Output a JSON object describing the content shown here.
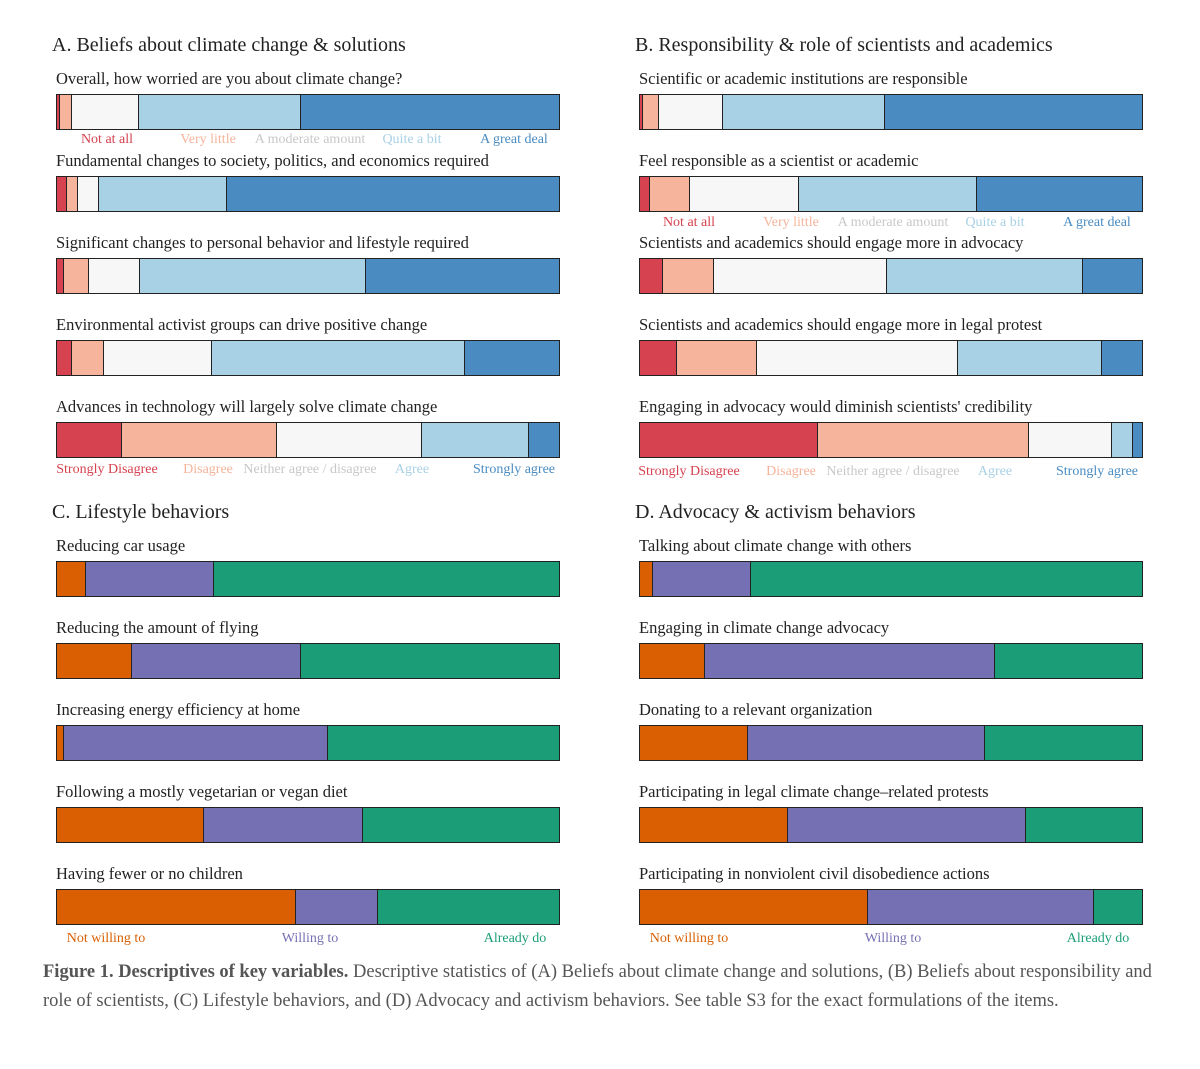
{
  "colors": {
    "sd": "#d6424f",
    "d": "#f5b49b",
    "n": "#f7f7f7",
    "a": "#a8d1e5",
    "sa": "#4a8cc2",
    "not": "#d95f02",
    "will": "#7570b3",
    "done": "#1b9e77"
  },
  "legends": {
    "worry": [
      "Not at all",
      "Very little",
      "A moderate amount",
      "Quite a bit",
      "A great deal"
    ],
    "agree": [
      "Strongly Disagree",
      "Disagree",
      "Neither agree / disagree",
      "Agree",
      "Strongly agree"
    ],
    "behavior": [
      "Not willing to",
      "Willing to",
      "Already do"
    ]
  },
  "chart_data": [
    {
      "type": "bar",
      "title": "A. Beliefs about climate change & solutions",
      "items": [
        {
          "label": "Overall, how worried are you about climate change?",
          "values": [
            0.6,
            2.4,
            13.4,
            32.2,
            51.4
          ]
        },
        {
          "label": "Fundamental changes to society, politics, and economics required",
          "values": [
            2,
            2.2,
            4.2,
            25.4,
            66.2
          ]
        },
        {
          "label": "Significant changes to personal behavior and lifestyle required",
          "values": [
            1.4,
            5,
            10.1,
            45.1,
            38.4
          ]
        },
        {
          "label": "Environmental activist groups can drive positive change",
          "values": [
            3,
            6.4,
            21.5,
            50.3,
            18.8
          ]
        },
        {
          "label": "Advances in technology will largely solve climate change",
          "values": [
            13,
            30.8,
            29,
            21.3,
            5.9
          ]
        }
      ]
    },
    {
      "type": "bar",
      "title": "B. Responsibility & role of scientists and academics",
      "items": [
        {
          "label": "Scientific or academic institutions are responsible",
          "values": [
            0.6,
            3.2,
            12.7,
            32.3,
            51.2
          ]
        },
        {
          "label": "Feel responsible as a scientist or academic",
          "values": [
            2,
            7.9,
            21.8,
            35.5,
            32.8
          ]
        },
        {
          "label": "Scientists and academics should engage more in advocacy",
          "values": [
            4.5,
            10.3,
            34.4,
            39.1,
            11.7
          ]
        },
        {
          "label": "Scientists and academics should engage more in legal protest",
          "values": [
            7.3,
            16,
            40.1,
            28.6,
            8
          ]
        },
        {
          "label": "Engaging in advocacy would diminish scientists' credibility",
          "values": [
            35.5,
            42,
            16.6,
            4.2,
            1.7
          ]
        }
      ]
    },
    {
      "type": "bar",
      "title": "C. Lifestyle behaviors",
      "items": [
        {
          "label": "Reducing car usage",
          "values": [
            5.7,
            25.6,
            68.7
          ]
        },
        {
          "label": "Reducing the amount of flying",
          "values": [
            14.9,
            33.7,
            51.4
          ]
        },
        {
          "label": "Increasing energy efficiency at home",
          "values": [
            1.4,
            52.6,
            46
          ]
        },
        {
          "label": "Following a mostly vegetarian or vegan diet",
          "values": [
            29.2,
            31.8,
            39
          ]
        },
        {
          "label": "Having fewer or no children",
          "values": [
            47.6,
            16.3,
            36.1
          ]
        }
      ]
    },
    {
      "type": "bar",
      "title": "D. Advocacy & activism behaviors",
      "items": [
        {
          "label": "Talking about climate change with others",
          "values": [
            2.6,
            19.6,
            77.8
          ]
        },
        {
          "label": "Engaging in climate change advocacy",
          "values": [
            13,
            57.7,
            29.3
          ]
        },
        {
          "label": "Donating to a relevant organization",
          "values": [
            21.6,
            47.2,
            31.2
          ]
        },
        {
          "label": "Participating in legal climate change–related protests",
          "values": [
            29.4,
            47.4,
            23.2
          ]
        },
        {
          "label": "Participating in nonviolent civil disobedience actions",
          "values": [
            45.5,
            44.9,
            9.6
          ]
        }
      ]
    }
  ],
  "caption": {
    "bold": "Figure 1. Descriptives of key variables.",
    "text": " Descriptive statistics of (A) Beliefs about climate change and solutions, (B) Beliefs about responsibility and role of scientists, (C) Lifestyle behaviors, and (D) Advocacy and activism behaviors. See table S3 for the exact formulations of the items."
  }
}
